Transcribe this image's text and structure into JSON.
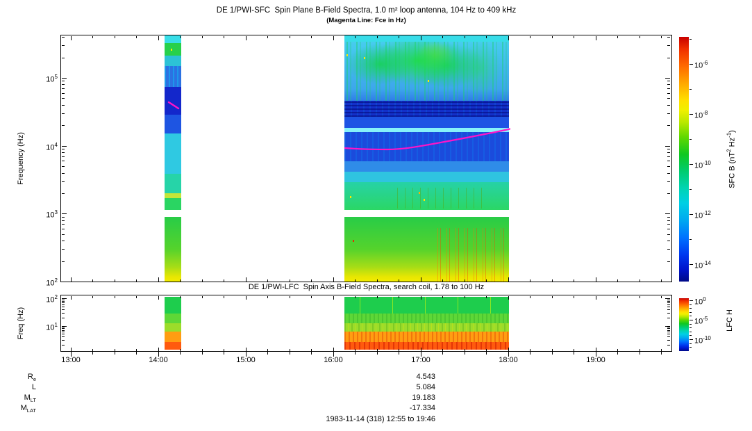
{
  "chart_data": [
    {
      "type": "heatmap",
      "panel": "SFC",
      "title": "DE 1/PWI-SFC  Spin Plane B-Field Spectra, 1.0 m² loop antenna, 104 Hz to 409 kHz",
      "subtitle": "(Magenta Line: Fce in Hz)",
      "ylabel": "Frequency (Hz)",
      "yscale": "log",
      "ylim_hz": [
        104,
        409000
      ],
      "y_tick_exponents": [
        2,
        3,
        4,
        5
      ],
      "x_tick_labels": [
        "13:00",
        "14:00",
        "15:00",
        "16:00",
        "17:00",
        "18:00",
        "19:00"
      ],
      "x_tick_hours": [
        13,
        14,
        15,
        16,
        17,
        18,
        19
      ],
      "x_minor_tick_minutes": 15,
      "time_range": "12:55 to 19:46",
      "colorbar": {
        "colormap": "rainbow",
        "tick_exponents": [
          -6,
          -8,
          -10,
          -12,
          -14
        ],
        "label_parts": [
          {
            "t": "SFC B (nT"
          },
          {
            "t": "2",
            "sup": true
          },
          {
            "t": " Hz"
          },
          {
            "t": "-1",
            "sup": true
          },
          {
            "t": ")"
          }
        ]
      },
      "data_intervals": [
        {
          "start": "14:04",
          "end": "14:16",
          "start_hour": 14.07,
          "end_hour": 14.26
        },
        {
          "start": "16:08",
          "end": "18:00",
          "start_hour": 16.13,
          "end_hour": 18.01
        }
      ],
      "receiver_gap_hz": [
        900,
        1100
      ],
      "fce_line": {
        "label": "Fce",
        "color": "#ff14c8",
        "points": [
          {
            "time": "16:08",
            "hz": 8000
          },
          {
            "time": "17:00",
            "hz": 9500
          },
          {
            "time": "17:30",
            "hz": 12000
          },
          {
            "time": "18:00",
            "hz": 17000
          }
        ],
        "stripe_points": [
          {
            "time": "14:05",
            "hz": 42000
          },
          {
            "time": "14:12",
            "hz": 34000
          }
        ]
      },
      "features": [
        {
          "name": "auroral-hiss",
          "time": "16:10-17:55",
          "freq_hz": [
            30000,
            400000
          ],
          "intensity": "green patches ~1e-9 over cyan ~1e-11 background"
        },
        {
          "name": "quiet-dark-band",
          "time": "16:08-18:00",
          "freq_hz": [
            20000,
            60000
          ],
          "intensity": "dark blue ~1e-13"
        },
        {
          "name": "bright-cyan-band",
          "time": "16:08-18:00",
          "freq_hz": [
            16000,
            18000
          ],
          "intensity": "~1e-11"
        },
        {
          "name": "chorus-speckles",
          "time": "16:40-17:30",
          "freq_hz": [
            1500,
            6000
          ],
          "intensity": "green-yellow bursts"
        },
        {
          "name": "low-band",
          "time": "both intervals",
          "freq_hz": [
            104,
            900
          ],
          "intensity": "green to yellow ~1e-8 to 1e-7, orange-red bursts 17:20-17:55"
        }
      ]
    },
    {
      "type": "heatmap",
      "panel": "LFC",
      "title": "DE 1/PWI-LFC  Spin Axis B-Field Spectra, search coil, 1.78 to 100 Hz",
      "ylabel": "Freq (Hz)",
      "yscale": "log",
      "ylim_hz": [
        1.78,
        100
      ],
      "y_tick_exponents": [
        1,
        2
      ],
      "colorbar": {
        "colormap": "rainbow",
        "tick_exponents": [
          0,
          -5,
          -10
        ],
        "label_parts": [
          {
            "t": "LFC H"
          }
        ]
      },
      "data_intervals": [
        {
          "start": "14:04",
          "end": "14:16",
          "start_hour": 14.07,
          "end_hour": 14.26
        },
        {
          "start": "16:08",
          "end": "18:00",
          "start_hour": 16.13,
          "end_hour": 18.01
        }
      ],
      "bands": [
        {
          "freq_hz": [
            20,
            100
          ],
          "color": "green",
          "intensity": "~1e-6"
        },
        {
          "freq_hz": [
            8,
            20
          ],
          "color": "yellow-green",
          "intensity": "~1e-4"
        },
        {
          "freq_hz": [
            3.5,
            8
          ],
          "color": "orange",
          "intensity": "~1e-2"
        },
        {
          "freq_hz": [
            1.78,
            3.5
          ],
          "color": "red-orange",
          "intensity": "~1e-1"
        }
      ]
    }
  ],
  "footer": {
    "rows": [
      {
        "base": "R",
        "sub": "e",
        "value": "4.543"
      },
      {
        "base": "L",
        "sub": "",
        "value": "5.084"
      },
      {
        "base": "M",
        "sub": "LT",
        "value": "19.183"
      },
      {
        "base": "M",
        "sub": "LAT",
        "value": "-17.334"
      }
    ],
    "date_line": "1983-11-14 (318) 12:55 to 19:46"
  },
  "colors": {
    "magenta_line": "#ff14c8",
    "colormap_top": "#c80000",
    "colormap_bottom": "#000a86"
  }
}
